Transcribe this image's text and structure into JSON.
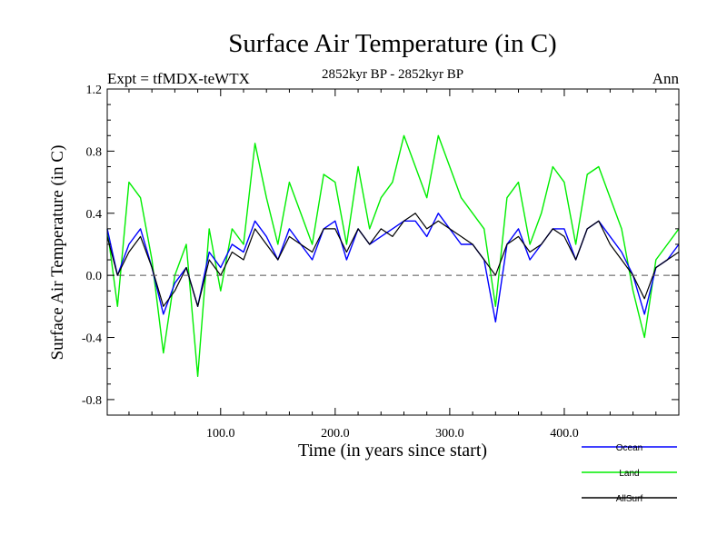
{
  "chart_data": {
    "type": "line",
    "title": "Surface Air Temperature (in C)",
    "subtitle_left": "Expt = tfMDX-teWTX",
    "subtitle_center": "2852kyr BP - 2852kyr BP",
    "subtitle_right": "Ann",
    "xlabel": "Time (in years since start)",
    "ylabel": "Surface Air Temperature (in C)",
    "xlim": [
      1,
      500
    ],
    "ylim": [
      -0.9,
      1.2
    ],
    "x_ticks": [
      100,
      200,
      300,
      400
    ],
    "x_tick_labels": [
      "100.0",
      "200.0",
      "300.0",
      "400.0"
    ],
    "y_ticks": [
      -0.8,
      -0.4,
      0.0,
      0.4,
      0.8,
      1.2
    ],
    "y_tick_labels": [
      "-0.8",
      "-0.4",
      "0.0",
      "0.4",
      "0.8",
      "1.2"
    ],
    "reference_line": 0.0,
    "legend_position": "bottom-right",
    "series": [
      {
        "name": "AllSurf",
        "color": "#000000",
        "x": [
          1,
          10,
          20,
          30,
          40,
          50,
          60,
          70,
          80,
          90,
          100,
          110,
          120,
          130,
          140,
          150,
          160,
          170,
          180,
          190,
          200,
          210,
          220,
          230,
          240,
          250,
          260,
          270,
          280,
          290,
          300,
          310,
          320,
          330,
          340,
          350,
          360,
          370,
          380,
          390,
          400,
          410,
          420,
          430,
          440,
          450,
          460,
          470,
          480,
          490,
          500
        ],
        "values": [
          0.25,
          0.0,
          0.15,
          0.25,
          0.05,
          -0.2,
          -0.1,
          0.05,
          -0.2,
          0.1,
          0.0,
          0.15,
          0.1,
          0.3,
          0.2,
          0.1,
          0.25,
          0.2,
          0.15,
          0.3,
          0.3,
          0.15,
          0.3,
          0.2,
          0.3,
          0.25,
          0.35,
          0.4,
          0.3,
          0.35,
          0.3,
          0.25,
          0.2,
          0.1,
          0.0,
          0.2,
          0.25,
          0.15,
          0.2,
          0.3,
          0.25,
          0.1,
          0.3,
          0.35,
          0.2,
          0.1,
          0.0,
          -0.15,
          0.05,
          0.1,
          0.15
        ]
      },
      {
        "name": "Land",
        "color": "#00ee00",
        "x": [
          1,
          10,
          20,
          30,
          40,
          50,
          60,
          70,
          80,
          90,
          100,
          110,
          120,
          130,
          140,
          150,
          160,
          170,
          180,
          190,
          200,
          210,
          220,
          230,
          240,
          250,
          260,
          270,
          280,
          290,
          300,
          310,
          320,
          330,
          340,
          350,
          360,
          370,
          380,
          390,
          400,
          410,
          420,
          430,
          440,
          450,
          460,
          470,
          480,
          490,
          500
        ],
        "values": [
          0.3,
          -0.2,
          0.6,
          0.5,
          0.1,
          -0.5,
          0.0,
          0.2,
          -0.65,
          0.3,
          -0.1,
          0.3,
          0.2,
          0.85,
          0.5,
          0.2,
          0.6,
          0.4,
          0.2,
          0.65,
          0.6,
          0.2,
          0.7,
          0.3,
          0.5,
          0.6,
          0.9,
          0.7,
          0.5,
          0.9,
          0.7,
          0.5,
          0.4,
          0.3,
          -0.2,
          0.5,
          0.6,
          0.2,
          0.4,
          0.7,
          0.6,
          0.2,
          0.65,
          0.7,
          0.5,
          0.3,
          -0.1,
          -0.4,
          0.1,
          0.2,
          0.3
        ]
      },
      {
        "name": "Ocean",
        "color": "#0000ff",
        "x": [
          1,
          10,
          20,
          30,
          40,
          50,
          60,
          70,
          80,
          90,
          100,
          110,
          120,
          130,
          140,
          150,
          160,
          170,
          180,
          190,
          200,
          210,
          220,
          230,
          240,
          250,
          260,
          270,
          280,
          290,
          300,
          310,
          320,
          330,
          340,
          350,
          360,
          370,
          380,
          390,
          400,
          410,
          420,
          430,
          440,
          450,
          460,
          470,
          480,
          490,
          500
        ],
        "values": [
          0.3,
          0.0,
          0.2,
          0.3,
          0.05,
          -0.25,
          -0.05,
          0.05,
          -0.2,
          0.15,
          0.05,
          0.2,
          0.15,
          0.35,
          0.25,
          0.1,
          0.3,
          0.2,
          0.1,
          0.3,
          0.35,
          0.1,
          0.3,
          0.2,
          0.25,
          0.3,
          0.35,
          0.35,
          0.25,
          0.4,
          0.3,
          0.2,
          0.2,
          0.1,
          -0.3,
          0.2,
          0.3,
          0.1,
          0.2,
          0.3,
          0.3,
          0.1,
          0.3,
          0.35,
          0.25,
          0.15,
          0.0,
          -0.25,
          0.05,
          0.1,
          0.2
        ]
      }
    ],
    "legend": [
      {
        "label": "Ocean",
        "color": "#0000ff"
      },
      {
        "label": "Land",
        "color": "#00ee00"
      },
      {
        "label": "AllSurf",
        "color": "#000000"
      }
    ]
  }
}
